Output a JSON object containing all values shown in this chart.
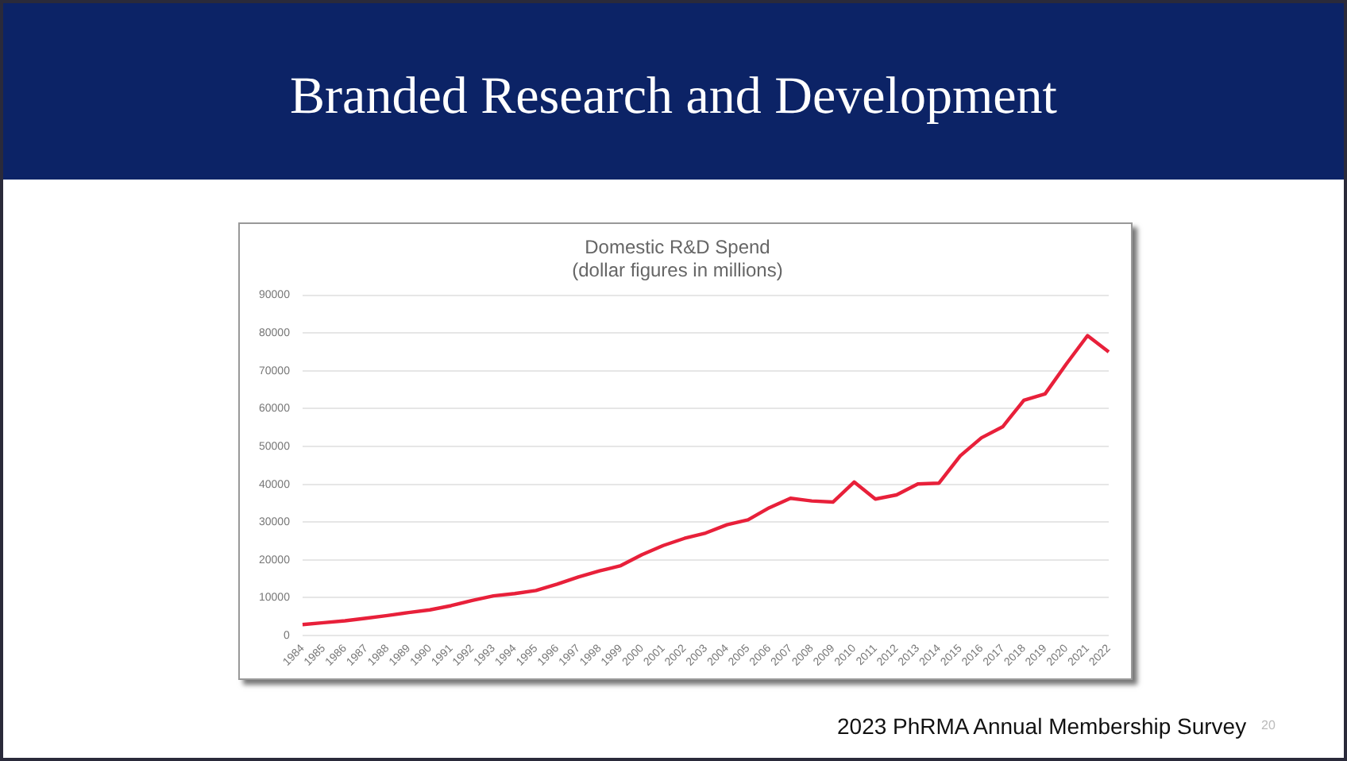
{
  "chart_data": {
    "type": "line",
    "title": "Domestic R&D Spend",
    "subtitle": "(dollar figures in millions)",
    "annotations": [
      "Branded Research and Development",
      "2023 PhRMA Annual Membership Survey",
      "20"
    ],
    "categories": [
      "1984",
      "1985",
      "1986",
      "1987",
      "1988",
      "1989",
      "1990",
      "1991",
      "1992",
      "1993",
      "1994",
      "1995",
      "1996",
      "1997",
      "1998",
      "1999",
      "2000",
      "2001",
      "2002",
      "2003",
      "2004",
      "2005",
      "2006",
      "2007",
      "2008",
      "2009",
      "2010",
      "2011",
      "2012",
      "2013",
      "2014",
      "2015",
      "2016",
      "2017",
      "2018",
      "2019",
      "2020",
      "2021",
      "2022"
    ],
    "series": [
      {
        "color": "#e8203a",
        "values": [
          2900,
          3400,
          3900,
          4600,
          5300,
          6100,
          6800,
          7900,
          9300,
          10500,
          11100,
          11900,
          13600,
          15500,
          17100,
          18500,
          21400,
          23800,
          25700,
          27100,
          29300,
          30600,
          33800,
          36300,
          35600,
          35300,
          40600,
          36100,
          37200,
          40100,
          40300,
          47500,
          52300,
          55200,
          62200,
          63900,
          71800,
          79300,
          75000
        ]
      }
    ],
    "ylim": [
      0,
      90000
    ],
    "yticks": [
      0,
      10000,
      20000,
      30000,
      40000,
      50000,
      60000,
      70000,
      80000,
      90000
    ],
    "grid": "y",
    "legend": false,
    "marker": "none",
    "line_style": "solid"
  }
}
